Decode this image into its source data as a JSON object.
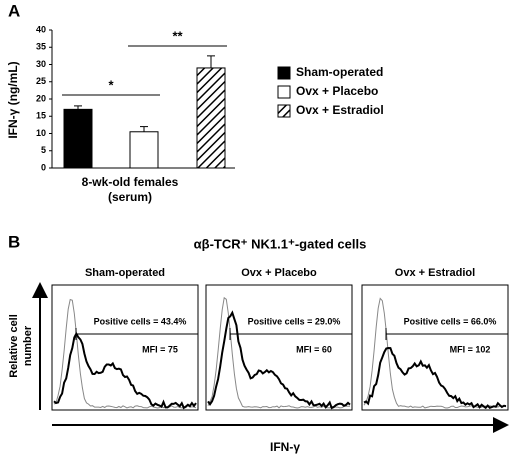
{
  "panel_a": {
    "label": "A"
  },
  "chart_data": {
    "type": "bar",
    "ylabel": "IFN-γ (ng/mL)",
    "xlabel": [
      "8-wk-old females",
      "(serum)"
    ],
    "categories": [
      "Sham-operated",
      "Ovx + Placebo",
      "Ovx + Estradiol"
    ],
    "values": [
      17,
      10.5,
      29
    ],
    "errors": [
      1,
      1.5,
      3.5
    ],
    "fills": [
      "#000000",
      "#ffffff",
      "hatch"
    ],
    "ylim": [
      0,
      40
    ],
    "yticks": [
      0,
      5,
      10,
      15,
      20,
      25,
      30,
      35,
      40
    ],
    "significance": [
      {
        "label": "*",
        "pair": [
          0,
          1
        ]
      },
      {
        "label": "**",
        "pair": [
          1,
          2
        ]
      }
    ]
  },
  "panel_b": {
    "label": "B",
    "title": "αβ-TCR⁺ NK1.1⁺-gated cells",
    "ylabel": [
      "Relative cell",
      "number"
    ],
    "xlabel": "IFN-γ",
    "panels": [
      {
        "title": "Sham-operated",
        "positive": "Positive cells = 43.4%",
        "mfi": "MFI = 75"
      },
      {
        "title": "Ovx + Placebo",
        "positive": "Positive cells = 29.0%",
        "mfi": "MFI = 60"
      },
      {
        "title": "Ovx + Estradiol",
        "positive": "Positive cells = 66.0%",
        "mfi": "MFI = 102"
      }
    ]
  }
}
